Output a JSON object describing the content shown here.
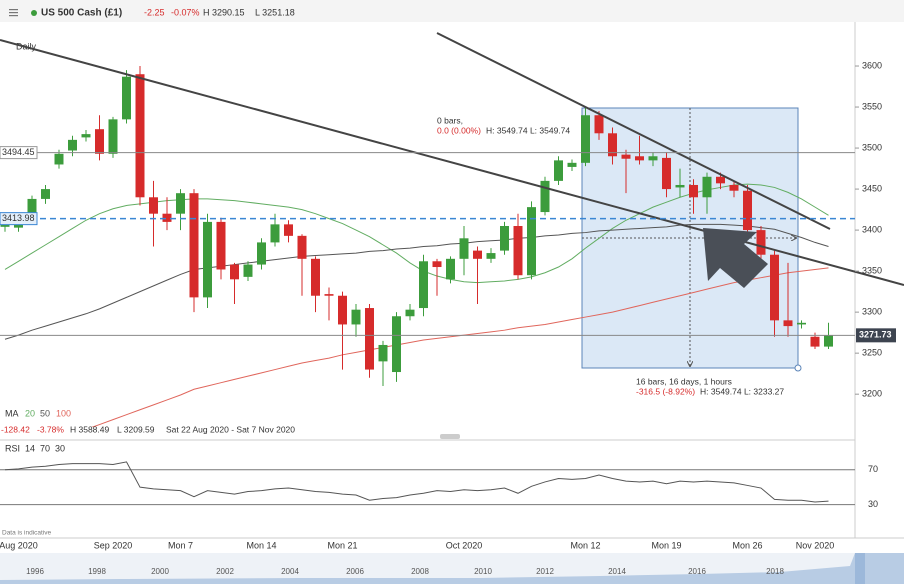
{
  "header": {
    "instrument": "US 500 Cash (£1)",
    "change": "-2.25",
    "change_pct": "-0.07%",
    "high": "H 3290.15",
    "low": "L 3251.18"
  },
  "chart_data": [
    {
      "type": "candlestick",
      "timeframe": "Daily",
      "categories": [
        null,
        "Aug 2020",
        null,
        null,
        null,
        null,
        null,
        null,
        "Sep 2020",
        null,
        null,
        null,
        null,
        "Mon 7",
        null,
        null,
        null,
        null,
        null,
        "Mon 14",
        null,
        null,
        null,
        null,
        null,
        "Mon 21",
        null,
        null,
        null,
        null,
        null,
        null,
        null,
        null,
        "Oct 2020",
        null,
        null,
        null,
        null,
        null,
        null,
        null,
        null,
        "Mon 12",
        null,
        null,
        null,
        null,
        null,
        "Mon 19",
        null,
        null,
        null,
        null,
        null,
        "Mon 26",
        null,
        null,
        null,
        null,
        "Nov 2020",
        null
      ],
      "open": [
        3404,
        3403,
        3420,
        3438,
        3480,
        3497,
        3513,
        3523,
        3493,
        3535,
        3590,
        3440,
        3420,
        3420,
        3445,
        3318,
        3410,
        3358,
        3343,
        3358,
        3385,
        3407,
        3393,
        3365,
        3322,
        3320,
        3285,
        3305,
        3240,
        3227,
        3295,
        3305,
        3362,
        3340,
        3365,
        3375,
        3365,
        3375,
        3405,
        3345,
        3422,
        3460,
        3477,
        3482,
        3540,
        3518,
        3492,
        3490,
        3485,
        3488,
        3452,
        3455,
        3440,
        3465,
        3455,
        3448,
        3400,
        3370,
        3290,
        3285,
        3270,
        3258
      ],
      "high": [
        3412,
        3418,
        3442,
        3455,
        3498,
        3515,
        3522,
        3540,
        3538,
        3595,
        3600,
        3460,
        3440,
        3450,
        3450,
        3420,
        3415,
        3360,
        3362,
        3390,
        3420,
        3412,
        3395,
        3368,
        3330,
        3325,
        3310,
        3310,
        3265,
        3300,
        3310,
        3370,
        3365,
        3368,
        3405,
        3380,
        3378,
        3410,
        3420,
        3435,
        3465,
        3490,
        3486,
        3550,
        3545,
        3525,
        3498,
        3515,
        3495,
        3495,
        3475,
        3462,
        3470,
        3470,
        3460,
        3455,
        3405,
        3375,
        3360,
        3290,
        3275,
        3287
      ],
      "low": [
        3398,
        3398,
        3415,
        3432,
        3475,
        3490,
        3508,
        3485,
        3488,
        3530,
        3430,
        3380,
        3400,
        3400,
        3300,
        3305,
        3340,
        3310,
        3338,
        3352,
        3380,
        3385,
        3320,
        3300,
        3290,
        3230,
        3270,
        3220,
        3210,
        3215,
        3290,
        3295,
        3320,
        3335,
        3345,
        3310,
        3360,
        3370,
        3340,
        3340,
        3418,
        3455,
        3472,
        3478,
        3510,
        3480,
        3445,
        3480,
        3478,
        3440,
        3440,
        3420,
        3420,
        3450,
        3440,
        3390,
        3360,
        3270,
        3270,
        3280,
        3255,
        3255
      ],
      "close": [
        3410,
        3413,
        3438,
        3450,
        3493,
        3510,
        3517,
        3493,
        3535,
        3587,
        3440,
        3420,
        3410,
        3445,
        3318,
        3410,
        3352,
        3340,
        3358,
        3385,
        3407,
        3393,
        3365,
        3320,
        3320,
        3285,
        3303,
        3230,
        3260,
        3295,
        3303,
        3362,
        3355,
        3365,
        3390,
        3365,
        3372,
        3405,
        3345,
        3428,
        3460,
        3485,
        3482,
        3540,
        3518,
        3490,
        3487,
        3485,
        3490,
        3450,
        3455,
        3440,
        3465,
        3457,
        3448,
        3400,
        3370,
        3290,
        3283,
        3287,
        3258,
        3272
      ],
      "up_color": "#3c9c3c",
      "down_color": "#d62b2b",
      "ylim": [
        3160,
        3650
      ],
      "yticks": [
        3200,
        3250,
        3300,
        3350,
        3400,
        3450,
        3500,
        3550,
        3600
      ],
      "price_lines": [
        3494.45,
        3413.98
      ],
      "last_price": 3271.73,
      "moving_averages": {
        "label": "MA",
        "series": [
          {
            "name": "20",
            "color": "#62ad62",
            "values": [
              3352,
              3362,
              3372,
              3382,
              3392,
              3402,
              3412,
              3420,
              3426,
              3430,
              3432,
              3434,
              3436,
              3437,
              3438,
              3438,
              3437,
              3436,
              3434,
              3432,
              3430,
              3428,
              3425,
              3420,
              3414,
              3408,
              3400,
              3392,
              3382,
              3372,
              3360,
              3350,
              3344,
              3340,
              3337,
              3336,
              3337,
              3338,
              3340,
              3343,
              3348,
              3355,
              3365,
              3378,
              3390,
              3402,
              3412,
              3420,
              3428,
              3434,
              3440,
              3445,
              3449,
              3452,
              3455,
              3456,
              3455,
              3452,
              3446,
              3438,
              3428,
              3418
            ]
          },
          {
            "name": "50",
            "color": "#555555",
            "values": [
              3267,
              3272,
              3278,
              3283,
              3288,
              3293,
              3298,
              3304,
              3311,
              3318,
              3325,
              3332,
              3339,
              3346,
              3352,
              3354,
              3356,
              3358,
              3360,
              3362,
              3364,
              3366,
              3368,
              3369,
              3370,
              3371,
              3372,
              3374,
              3375,
              3377,
              3378,
              3380,
              3381,
              3383,
              3384,
              3386,
              3387,
              3388,
              3390,
              3391,
              3393,
              3394,
              3396,
              3397,
              3399,
              3400,
              3401,
              3402,
              3403,
              3404,
              3406,
              3407,
              3407,
              3407,
              3406,
              3405,
              3403,
              3401,
              3396,
              3391,
              3385,
              3380
            ]
          },
          {
            "name": "100",
            "color": "#e0665c",
            "values": [
              null,
              null,
              null,
              null,
              null,
              3150,
              3157,
              3163,
              3169,
              3175,
              3181,
              3187,
              3193,
              3199,
              3206,
              3210,
              3214,
              3218,
              3222,
              3226,
              3230,
              3234,
              3238,
              3241,
              3244,
              3248,
              3251,
              3254,
              3257,
              3260,
              3263,
              3266,
              3268,
              3270,
              3272,
              3274,
              3276,
              3278,
              3281,
              3283,
              3285,
              3288,
              3291,
              3294,
              3297,
              3300,
              3304,
              3308,
              3312,
              3316,
              3320,
              3324,
              3328,
              3332,
              3336,
              3339,
              3342,
              3345,
              3348,
              3350,
              3352,
              3354
            ]
          }
        ]
      },
      "summary": {
        "change": "-128.42",
        "change_pct": "-3.78%",
        "high": "H 3588.49",
        "low": "L 3209.59",
        "range": "Sat 22 Aug 2020 - Sat 7 Nov 2020"
      },
      "measure": {
        "start": [
          "0 bars,",
          "0.0 (0.00%)",
          "H: 3549.74 L: 3549.74"
        ],
        "end": [
          "16 bars, 16 days, 1 hours",
          "-316.5 (-8.92%)",
          "H: 3549.74 L: 3233.27"
        ]
      },
      "note": "Data is indicative"
    },
    {
      "type": "line",
      "indicator": "RSI",
      "params": [
        "14",
        "70",
        "30"
      ],
      "color": "#555555",
      "values": [
        70,
        71,
        73,
        74,
        76,
        77,
        77,
        77,
        76,
        79,
        50,
        48,
        47,
        46,
        39,
        46,
        44,
        42,
        45,
        46,
        48,
        49,
        47,
        45,
        44,
        42,
        41,
        35,
        37,
        38,
        41,
        43,
        46,
        45,
        47,
        46,
        47,
        49,
        43,
        51,
        56,
        60,
        59,
        60,
        64,
        60,
        57,
        56,
        57,
        54,
        57,
        56,
        57,
        56,
        55,
        52,
        49,
        36,
        35,
        35,
        33,
        34
      ],
      "ylim": [
        10,
        95
      ],
      "yticks": [
        30,
        70
      ]
    }
  ],
  "navigator": {
    "years": [
      "1996",
      "1998",
      "2000",
      "2002",
      "2004",
      "2006",
      "2008",
      "2010",
      "2012",
      "2014",
      "2016",
      "2018"
    ]
  }
}
